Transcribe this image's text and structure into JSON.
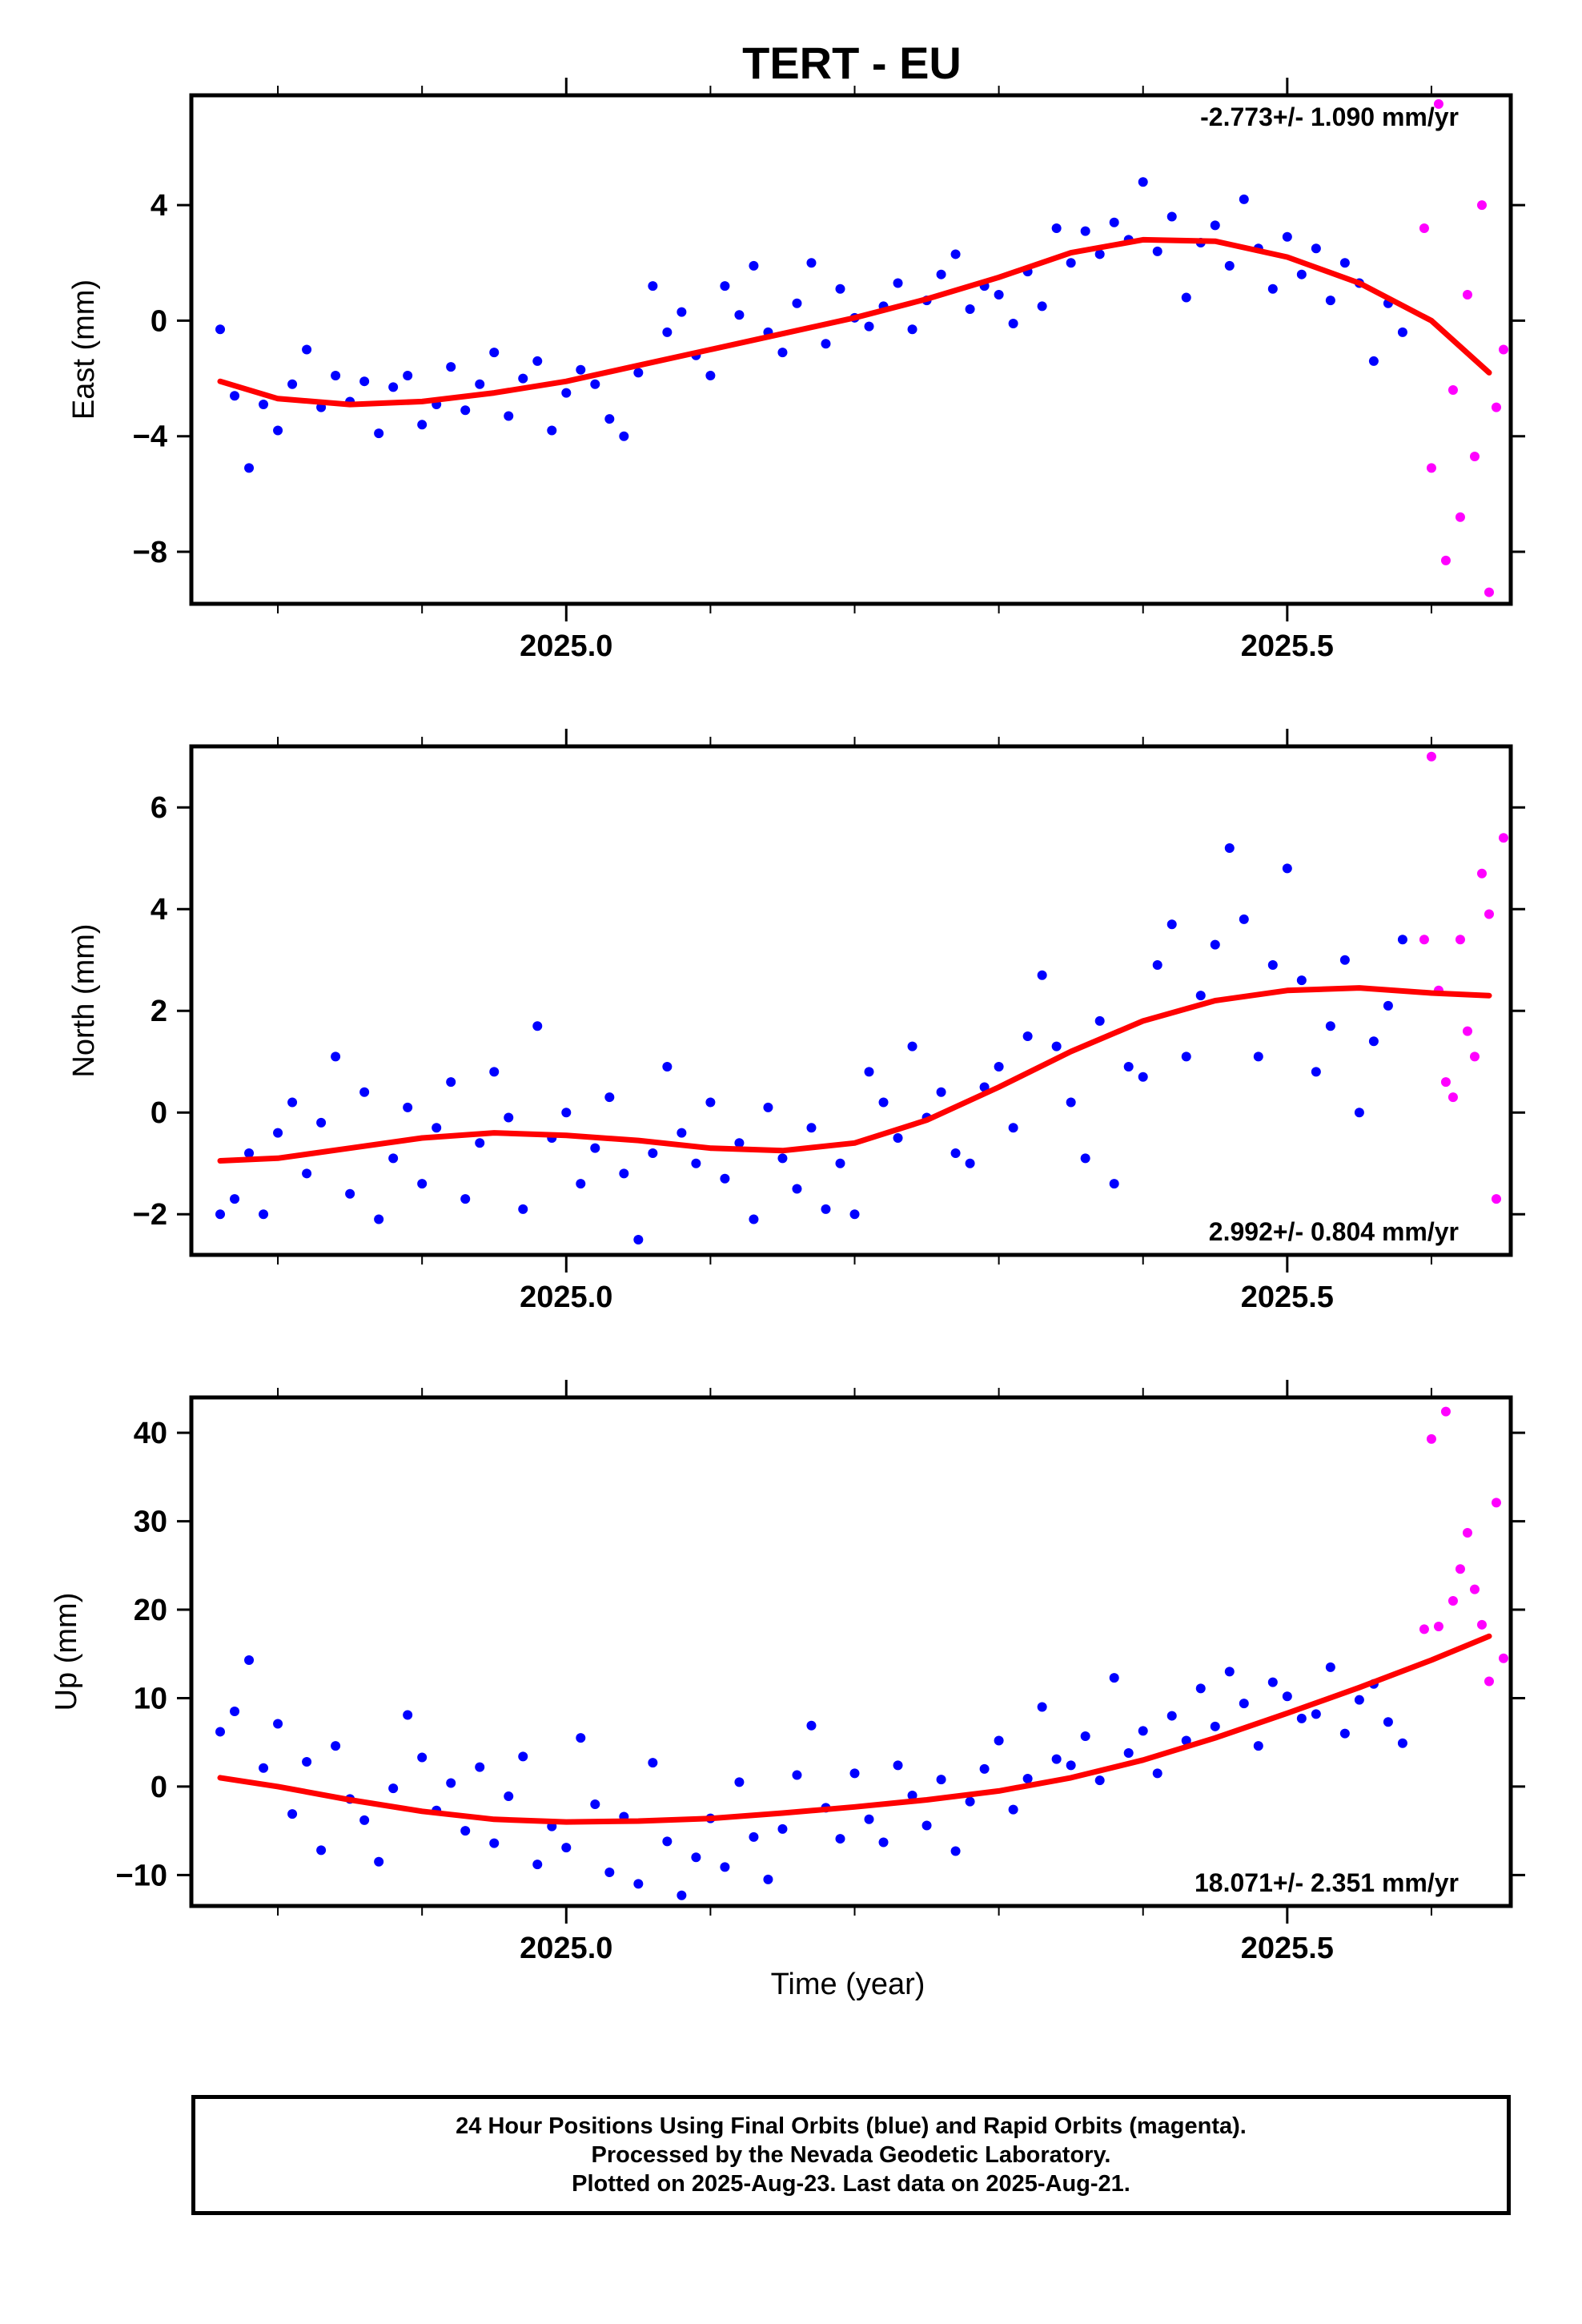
{
  "title": "TERT - EU",
  "xlabel": "Time (year)",
  "caption": {
    "line1": "24 Hour Positions Using Final Orbits (blue) and Rapid Orbits (magenta).",
    "line2": "Processed by the Nevada Geodetic Laboratory.",
    "line3": "Plotted on 2025-Aug-23. Last data on 2025-Aug-21."
  },
  "colors": {
    "final": "#0000ff",
    "rapid": "#ff00ff",
    "trend": "#ff0000",
    "axis": "#000000"
  },
  "chart_data": [
    {
      "type": "scatter",
      "panel": "east",
      "ylabel": "East (mm)",
      "rate_label": "-2.773+/- 1.090 mm/yr",
      "rate_position": "top-right",
      "xlim": [
        2024.74,
        2025.655
      ],
      "ylim": [
        -9.8,
        7.8
      ],
      "xticks": [
        2025.0,
        2025.5
      ],
      "xtick_labels": [
        "2025.0",
        "2025.5"
      ],
      "yticks": [
        -8,
        -4,
        0,
        4
      ],
      "ytick_labels": [
        "−8",
        "−4",
        "0",
        "4"
      ],
      "trend_x": [
        2024.76,
        2024.8,
        2024.85,
        2024.9,
        2024.95,
        2025.0,
        2025.05,
        2025.1,
        2025.15,
        2025.2,
        2025.25,
        2025.3,
        2025.35,
        2025.4,
        2025.45,
        2025.5,
        2025.55,
        2025.6,
        2025.64
      ],
      "trend_y": [
        -2.1,
        -2.7,
        -2.9,
        -2.8,
        -2.5,
        -2.1,
        -1.55,
        -1.0,
        -0.45,
        0.1,
        0.75,
        1.5,
        2.35,
        2.8,
        2.75,
        2.2,
        1.3,
        0.0,
        -1.8
      ],
      "final_x": [
        2024.76,
        2024.77,
        2024.78,
        2024.79,
        2024.8,
        2024.81,
        2024.82,
        2024.83,
        2024.84,
        2024.85,
        2024.86,
        2024.87,
        2024.88,
        2024.89,
        2024.9,
        2024.91,
        2024.92,
        2024.93,
        2024.94,
        2024.95,
        2024.96,
        2024.97,
        2024.98,
        2024.99,
        2025.0,
        2025.01,
        2025.02,
        2025.03,
        2025.04,
        2025.05,
        2025.06,
        2025.07,
        2025.08,
        2025.09,
        2025.1,
        2025.11,
        2025.12,
        2025.13,
        2025.14,
        2025.15,
        2025.16,
        2025.17,
        2025.18,
        2025.19,
        2025.2,
        2025.21,
        2025.22,
        2025.23,
        2025.24,
        2025.25,
        2025.26,
        2025.27,
        2025.28,
        2025.29,
        2025.3,
        2025.31,
        2025.32,
        2025.33,
        2025.34,
        2025.35,
        2025.36,
        2025.37,
        2025.38,
        2025.39,
        2025.4,
        2025.41,
        2025.42,
        2025.43,
        2025.44,
        2025.45,
        2025.46,
        2025.47,
        2025.48,
        2025.49,
        2025.5,
        2025.51,
        2025.52,
        2025.53,
        2025.54,
        2025.55,
        2025.56,
        2025.57,
        2025.58
      ],
      "final_y": [
        -0.3,
        -2.6,
        -5.1,
        -2.9,
        -3.8,
        -2.2,
        -1.0,
        -3.0,
        -1.9,
        -2.8,
        -2.1,
        -3.9,
        -2.3,
        -1.9,
        -3.6,
        -2.9,
        -1.6,
        -3.1,
        -2.2,
        -1.1,
        -3.3,
        -2.0,
        -1.4,
        -3.8,
        -2.5,
        -1.7,
        -2.2,
        -3.4,
        -4.0,
        -1.8,
        1.2,
        -0.4,
        0.3,
        -1.2,
        -1.9,
        1.2,
        0.2,
        1.9,
        -0.4,
        -1.1,
        0.6,
        2.0,
        -0.8,
        1.1,
        0.1,
        -0.2,
        0.5,
        1.3,
        -0.3,
        0.7,
        1.6,
        2.3,
        0.4,
        1.2,
        0.9,
        -0.1,
        1.7,
        0.5,
        3.2,
        2.0,
        3.1,
        2.3,
        3.4,
        2.8,
        4.8,
        2.4,
        3.6,
        0.8,
        2.7,
        3.3,
        1.9,
        4.2,
        2.5,
        1.1,
        2.9,
        1.6,
        2.5,
        0.7,
        2.0,
        1.3,
        -1.4,
        0.6,
        -0.4
      ],
      "rapid_x": [
        2025.595,
        2025.6,
        2025.605,
        2025.61,
        2025.615,
        2025.62,
        2025.625,
        2025.63,
        2025.635,
        2025.64,
        2025.645,
        2025.65
      ],
      "rapid_y": [
        3.2,
        -5.1,
        7.5,
        -8.3,
        -2.4,
        -6.8,
        0.9,
        -4.7,
        4.0,
        -9.4,
        -3.0,
        -1.0
      ]
    },
    {
      "type": "scatter",
      "panel": "north",
      "ylabel": "North (mm)",
      "rate_label": "2.992+/- 0.804 mm/yr",
      "rate_position": "bottom-right",
      "xlim": [
        2024.74,
        2025.655
      ],
      "ylim": [
        -2.8,
        7.2
      ],
      "xticks": [
        2025.0,
        2025.5
      ],
      "xtick_labels": [
        "2025.0",
        "2025.5"
      ],
      "yticks": [
        -2,
        0,
        2,
        4,
        6
      ],
      "ytick_labels": [
        "−2",
        "0",
        "2",
        "4",
        "6"
      ],
      "trend_x": [
        2024.76,
        2024.8,
        2024.85,
        2024.9,
        2024.95,
        2025.0,
        2025.05,
        2025.1,
        2025.15,
        2025.2,
        2025.25,
        2025.3,
        2025.35,
        2025.4,
        2025.45,
        2025.5,
        2025.55,
        2025.6,
        2025.64
      ],
      "trend_y": [
        -0.95,
        -0.9,
        -0.7,
        -0.5,
        -0.4,
        -0.45,
        -0.55,
        -0.7,
        -0.75,
        -0.6,
        -0.15,
        0.5,
        1.2,
        1.8,
        2.2,
        2.4,
        2.45,
        2.35,
        2.3
      ],
      "final_x": [
        2024.76,
        2024.77,
        2024.78,
        2024.79,
        2024.8,
        2024.81,
        2024.82,
        2024.83,
        2024.84,
        2024.85,
        2024.86,
        2024.87,
        2024.88,
        2024.89,
        2024.9,
        2024.91,
        2024.92,
        2024.93,
        2024.94,
        2024.95,
        2024.96,
        2024.97,
        2024.98,
        2024.99,
        2025.0,
        2025.01,
        2025.02,
        2025.03,
        2025.04,
        2025.05,
        2025.06,
        2025.07,
        2025.08,
        2025.09,
        2025.1,
        2025.11,
        2025.12,
        2025.13,
        2025.14,
        2025.15,
        2025.16,
        2025.17,
        2025.18,
        2025.19,
        2025.2,
        2025.21,
        2025.22,
        2025.23,
        2025.24,
        2025.25,
        2025.26,
        2025.27,
        2025.28,
        2025.29,
        2025.3,
        2025.31,
        2025.32,
        2025.33,
        2025.34,
        2025.35,
        2025.36,
        2025.37,
        2025.38,
        2025.39,
        2025.4,
        2025.41,
        2025.42,
        2025.43,
        2025.44,
        2025.45,
        2025.46,
        2025.47,
        2025.48,
        2025.49,
        2025.5,
        2025.51,
        2025.52,
        2025.53,
        2025.54,
        2025.55,
        2025.56,
        2025.57,
        2025.58
      ],
      "final_y": [
        -2.0,
        -1.7,
        -0.8,
        -2.0,
        -0.4,
        0.2,
        -1.2,
        -0.2,
        1.1,
        -1.6,
        0.4,
        -2.1,
        -0.9,
        0.1,
        -1.4,
        -0.3,
        0.6,
        -1.7,
        -0.6,
        0.8,
        -0.1,
        -1.9,
        1.7,
        -0.5,
        0.0,
        -1.4,
        -0.7,
        0.3,
        -1.2,
        -2.5,
        -0.8,
        0.9,
        -0.4,
        -1.0,
        0.2,
        -1.3,
        -0.6,
        -2.1,
        0.1,
        -0.9,
        -1.5,
        -0.3,
        -1.9,
        -1.0,
        -2.0,
        0.8,
        0.2,
        -0.5,
        1.3,
        -0.1,
        0.4,
        -0.8,
        -1.0,
        0.5,
        0.9,
        -0.3,
        1.5,
        2.7,
        1.3,
        0.2,
        -0.9,
        1.8,
        -1.4,
        0.9,
        0.7,
        2.9,
        3.7,
        1.1,
        2.3,
        3.3,
        5.2,
        3.8,
        1.1,
        2.9,
        4.8,
        2.6,
        0.8,
        1.7,
        3.0,
        0.0,
        1.4,
        2.1,
        3.4
      ],
      "rapid_x": [
        2025.595,
        2025.6,
        2025.605,
        2025.61,
        2025.615,
        2025.62,
        2025.625,
        2025.63,
        2025.635,
        2025.64,
        2025.645,
        2025.65
      ],
      "rapid_y": [
        3.4,
        7.0,
        2.4,
        0.6,
        0.3,
        3.4,
        1.6,
        1.1,
        4.7,
        3.9,
        -1.7,
        5.4
      ]
    },
    {
      "type": "scatter",
      "panel": "up",
      "ylabel": "Up (mm)",
      "rate_label": "18.071+/- 2.351 mm/yr",
      "rate_position": "bottom-right",
      "xlim": [
        2024.74,
        2025.655
      ],
      "ylim": [
        -13.5,
        44
      ],
      "xticks": [
        2025.0,
        2025.5
      ],
      "xtick_labels": [
        "2025.0",
        "2025.5"
      ],
      "yticks": [
        -10,
        0,
        10,
        20,
        30,
        40
      ],
      "ytick_labels": [
        "−10",
        "0",
        "10",
        "20",
        "30",
        "40"
      ],
      "trend_x": [
        2024.76,
        2024.8,
        2024.85,
        2024.9,
        2024.95,
        2025.0,
        2025.05,
        2025.1,
        2025.15,
        2025.2,
        2025.25,
        2025.3,
        2025.35,
        2025.4,
        2025.45,
        2025.5,
        2025.55,
        2025.6,
        2025.64
      ],
      "trend_y": [
        1.0,
        0.0,
        -1.5,
        -2.8,
        -3.7,
        -4.0,
        -3.9,
        -3.6,
        -3.0,
        -2.3,
        -1.5,
        -0.5,
        1.0,
        3.0,
        5.5,
        8.3,
        11.2,
        14.3,
        17.0
      ],
      "final_x": [
        2024.76,
        2024.77,
        2024.78,
        2024.79,
        2024.8,
        2024.81,
        2024.82,
        2024.83,
        2024.84,
        2024.85,
        2024.86,
        2024.87,
        2024.88,
        2024.89,
        2024.9,
        2024.91,
        2024.92,
        2024.93,
        2024.94,
        2024.95,
        2024.96,
        2024.97,
        2024.98,
        2024.99,
        2025.0,
        2025.01,
        2025.02,
        2025.03,
        2025.04,
        2025.05,
        2025.06,
        2025.07,
        2025.08,
        2025.09,
        2025.1,
        2025.11,
        2025.12,
        2025.13,
        2025.14,
        2025.15,
        2025.16,
        2025.17,
        2025.18,
        2025.19,
        2025.2,
        2025.21,
        2025.22,
        2025.23,
        2025.24,
        2025.25,
        2025.26,
        2025.27,
        2025.28,
        2025.29,
        2025.3,
        2025.31,
        2025.32,
        2025.33,
        2025.34,
        2025.35,
        2025.36,
        2025.37,
        2025.38,
        2025.39,
        2025.4,
        2025.41,
        2025.42,
        2025.43,
        2025.44,
        2025.45,
        2025.46,
        2025.47,
        2025.48,
        2025.49,
        2025.5,
        2025.51,
        2025.52,
        2025.53,
        2025.54,
        2025.55,
        2025.56,
        2025.57,
        2025.58
      ],
      "final_y": [
        6.2,
        8.5,
        14.3,
        2.1,
        7.1,
        -3.1,
        2.8,
        -7.2,
        4.6,
        -1.4,
        -3.8,
        -8.5,
        -0.2,
        8.1,
        3.3,
        -2.7,
        0.4,
        -5.0,
        2.2,
        -6.4,
        -1.1,
        3.4,
        -8.8,
        -4.5,
        -6.9,
        5.5,
        -2.0,
        -9.7,
        -3.4,
        -11.0,
        2.7,
        -6.2,
        -12.3,
        -8.0,
        -3.6,
        -9.1,
        0.5,
        -5.7,
        -10.5,
        -4.8,
        1.3,
        6.9,
        -2.4,
        -5.9,
        1.5,
        -3.7,
        -6.3,
        2.4,
        -1.0,
        -4.4,
        0.8,
        -7.3,
        -1.7,
        2.0,
        5.2,
        -2.6,
        0.9,
        9.0,
        3.1,
        2.4,
        5.7,
        0.7,
        12.3,
        3.8,
        6.3,
        1.5,
        8.0,
        5.2,
        11.1,
        6.8,
        13.0,
        9.4,
        4.6,
        11.8,
        10.2,
        7.7,
        8.2,
        13.5,
        6.0,
        9.8,
        11.6,
        7.3,
        4.9
      ],
      "rapid_x": [
        2025.595,
        2025.6,
        2025.605,
        2025.61,
        2025.615,
        2025.62,
        2025.625,
        2025.63,
        2025.635,
        2025.64,
        2025.645,
        2025.65
      ],
      "rapid_y": [
        17.8,
        39.3,
        18.1,
        42.4,
        21.0,
        24.6,
        28.7,
        22.3,
        18.3,
        11.9,
        32.1,
        14.5
      ]
    }
  ]
}
